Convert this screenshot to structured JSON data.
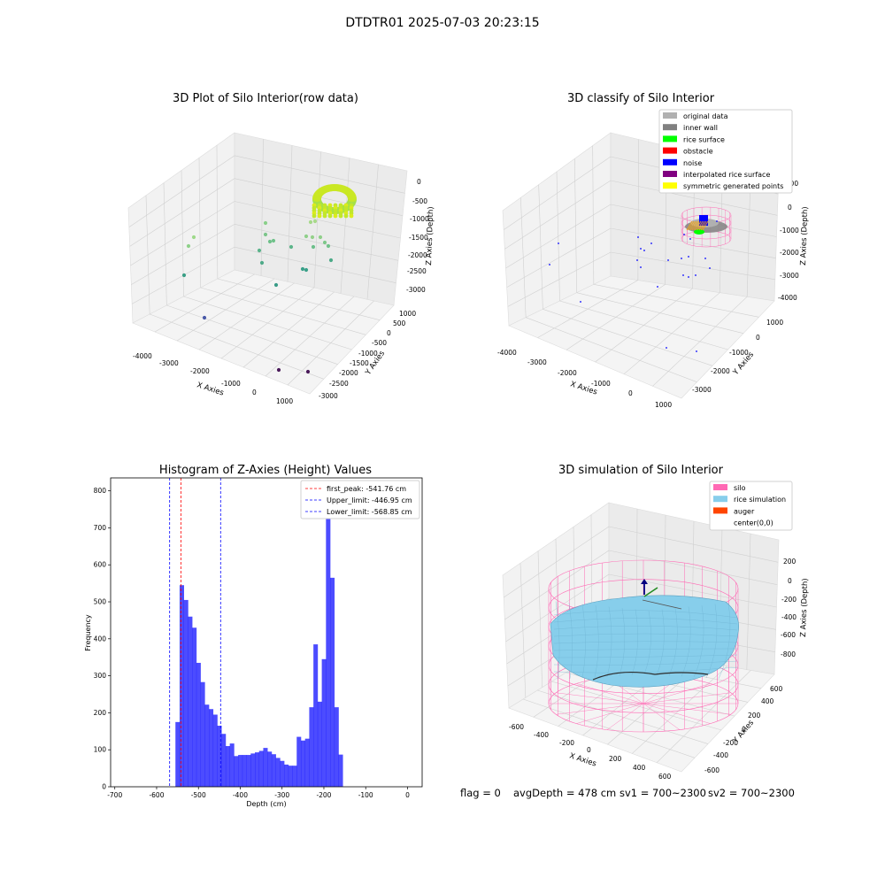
{
  "suptitle": "DTDTR01 2025-07-03 20:23:15",
  "chart_data": [
    {
      "type": "scatter",
      "title": "3D Plot of Silo Interior(row data)",
      "xlabel": "X Axies",
      "ylabel": "Y Axies",
      "zlabel": "Z Axies (Depth)",
      "x_ticks": [
        "-4000",
        "-3000",
        "-2000",
        "-1000",
        "0",
        "1000"
      ],
      "y_ticks": [
        "1000",
        "500",
        "0",
        "-500",
        "-1000",
        "-1500",
        "-2000",
        "-2500",
        "-3000"
      ],
      "z_ticks": [
        "0",
        "-500",
        "-1000",
        "-1500",
        "-2000",
        "-2500",
        "-3000"
      ]
    },
    {
      "type": "scatter",
      "title": "3D classify of Silo Interior",
      "xlabel": "X Axies",
      "ylabel": "Y Axies",
      "zlabel": "Z Axies (Depth)",
      "x_ticks": [
        "-4000",
        "-3000",
        "-2000",
        "-1000",
        "0",
        "1000"
      ],
      "y_ticks": [
        "1000",
        "0",
        "-1000",
        "-2000",
        "-3000"
      ],
      "z_ticks": [
        "1000",
        "0",
        "-1000",
        "-2000",
        "-3000",
        "-4000"
      ],
      "legend": [
        {
          "name": "original data",
          "color": "#b0b0b0"
        },
        {
          "name": "inner wall",
          "color": "#808080"
        },
        {
          "name": "rice surface",
          "color": "#00ff00"
        },
        {
          "name": "obstacle",
          "color": "#ff0000"
        },
        {
          "name": "noise",
          "color": "#0000ff"
        },
        {
          "name": "interpolated rice surface",
          "color": "#800080"
        },
        {
          "name": "symmetric generated points",
          "color": "#ffff00"
        }
      ],
      "legend_position": "top-right"
    },
    {
      "type": "bar",
      "title": "Histogram of Z-Axies (Height) Values",
      "xlabel": "Depth (cm)",
      "ylabel": "Frequency",
      "xlim": [
        -710,
        35
      ],
      "ylim": [
        0,
        835
      ],
      "x_ticks": [
        -700,
        -600,
        -500,
        -400,
        -300,
        -200,
        -100,
        0
      ],
      "y_ticks": [
        0,
        100,
        200,
        300,
        400,
        500,
        600,
        700,
        800
      ],
      "bin_start": -555,
      "bin_width": 10,
      "values": [
        175,
        545,
        505,
        460,
        430,
        335,
        283,
        222,
        210,
        195,
        165,
        143,
        110,
        117,
        83,
        86,
        86,
        86,
        90,
        93,
        97,
        105,
        95,
        88,
        78,
        70,
        60,
        57,
        57,
        135,
        125,
        130,
        215,
        385,
        230,
        345,
        785,
        565,
        215,
        87
      ],
      "color": "#0000ff",
      "vlines": [
        {
          "x": -541.76,
          "color": "#ff0000",
          "label": "first_peak: -541.76 cm"
        },
        {
          "x": -446.95,
          "color": "#0000ff",
          "label": "Upper_limit: -446.95 cm"
        },
        {
          "x": -568.85,
          "color": "#0000ff",
          "label": "Lower_limit: -568.85 cm"
        }
      ],
      "legend_position": "top-right"
    },
    {
      "type": "scatter",
      "title": "3D simulation of Silo Interior",
      "xlabel": "X Axies",
      "ylabel": "Y Axies",
      "zlabel": "Z Axies (Depth)",
      "x_ticks": [
        "-600",
        "-400",
        "-200",
        "0",
        "200",
        "400",
        "600"
      ],
      "y_ticks": [
        "600",
        "400",
        "200",
        "0",
        "-200",
        "-400",
        "-600"
      ],
      "z_ticks": [
        "200",
        "0",
        "-200",
        "-400",
        "-600",
        "-800"
      ],
      "legend": [
        {
          "name": "silo",
          "color": "#ff69b4"
        },
        {
          "name": "rice simulation",
          "color": "#87ceeb"
        },
        {
          "name": "auger",
          "color": "#ff4500"
        },
        {
          "name": "center(0,0)",
          "color": ""
        }
      ],
      "legend_position": "top-right"
    }
  ],
  "footer": {
    "flag": "flag = 0",
    "avg_depth": "avgDepth = 478 cm",
    "sv1": "sv1 = 700~2300",
    "sv2": "sv2 = 700~2300"
  }
}
